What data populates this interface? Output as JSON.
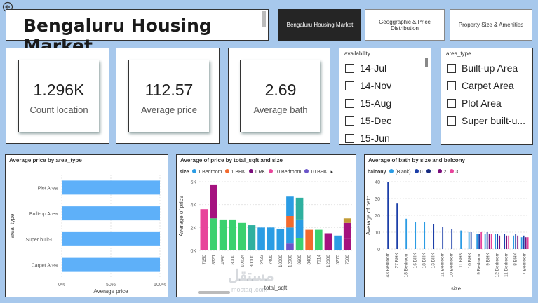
{
  "title": "Bengaluru Housing Market",
  "nav": [
    "Bengaluru Housing Market",
    "Geoggraphic & Price Distribution",
    "Property Size & Amenities"
  ],
  "kpis": [
    {
      "value": "1.296K",
      "label": "Count location"
    },
    {
      "value": "112.57",
      "label": "Average price"
    },
    {
      "value": "2.69",
      "label": "Average bath"
    }
  ],
  "availability": {
    "header": "availability",
    "items": [
      "14-Jul",
      "14-Nov",
      "15-Aug",
      "15-Dec",
      "15-Jun"
    ]
  },
  "area_type": {
    "header": "area_type",
    "items": [
      "Built-up Area",
      "Carpet Area",
      "Plot Area",
      "Super built-u..."
    ]
  },
  "watermark": {
    "arabic": "مستقل",
    "latin": "mostaql.com"
  },
  "colors": {
    "accent_bar": "#5eb0f9",
    "active_nav": "#252525",
    "background": "#a7c8ec"
  },
  "chart_data": [
    {
      "type": "bar",
      "orientation": "horizontal",
      "title": "Average price by area_type",
      "xlabel": "Average price",
      "ylabel": "area_type",
      "categories": [
        "Plot Area",
        "Built-up Area",
        "Super built-u...",
        "Carpet Area"
      ],
      "values": [
        100,
        100,
        100,
        100
      ],
      "xticks": [
        "0%",
        "50%",
        "100%"
      ],
      "color": "#5eb0f9"
    },
    {
      "type": "bar",
      "title": "Average of price by total_sqft and size",
      "xlabel": "total_sqft",
      "ylabel": "Average of price",
      "legend_title": "size",
      "legend": [
        {
          "name": "1 Bedroom",
          "color": "#2b9ce4"
        },
        {
          "name": "1 BHK",
          "color": "#f26a2e"
        },
        {
          "name": "1 RK",
          "color": "#7a0e7b"
        },
        {
          "name": "10 Bedroom",
          "color": "#e8449b"
        },
        {
          "name": "10 BHK",
          "color": "#6b55c9"
        }
      ],
      "yticks": [
        "6K",
        "4K",
        "2K",
        "0K"
      ],
      "ylim": [
        0,
        6000
      ],
      "categories": [
        "7150",
        "8321",
        "4350",
        "8000",
        "10624",
        "30000",
        "5422",
        "7400",
        "10000",
        "12000",
        "9600",
        "8400",
        "7514",
        "12000",
        "5270",
        "7500"
      ],
      "stacks": [
        [
          {
            "v": 3600,
            "c": "#e8449b"
          }
        ],
        [
          {
            "v": 2800,
            "c": "#3bd16f"
          },
          {
            "v": 2900,
            "c": "#a5127f"
          }
        ],
        [
          {
            "v": 2700,
            "c": "#3bd16f"
          }
        ],
        [
          {
            "v": 2700,
            "c": "#3bd16f"
          }
        ],
        [
          {
            "v": 2400,
            "c": "#3bd16f"
          }
        ],
        [
          {
            "v": 2200,
            "c": "#2fb09f"
          }
        ],
        [
          {
            "v": 2000,
            "c": "#2b9ce4"
          }
        ],
        [
          {
            "v": 2000,
            "c": "#2b9ce4"
          }
        ],
        [
          {
            "v": 1900,
            "c": "#2b9ce4"
          }
        ],
        [
          {
            "v": 600,
            "c": "#6b55c9"
          },
          {
            "v": 1400,
            "c": "#2b9ce4"
          },
          {
            "v": 1000,
            "c": "#f26a2e"
          },
          {
            "v": 1700,
            "c": "#2b9ce4"
          }
        ],
        [
          {
            "v": 1100,
            "c": "#3bd16f"
          },
          {
            "v": 1600,
            "c": "#2b9ce4"
          },
          {
            "v": 1900,
            "c": "#2fb09f"
          }
        ],
        [
          {
            "v": 1800,
            "c": "#f26a2e"
          }
        ],
        [
          {
            "v": 1800,
            "c": "#3bd16f"
          }
        ],
        [
          {
            "v": 1500,
            "c": "#a5127f"
          }
        ],
        [
          {
            "v": 1300,
            "c": "#2b9ce4"
          }
        ],
        [
          {
            "v": 1000,
            "c": "#a5127f"
          },
          {
            "v": 1400,
            "c": "#a5127f"
          },
          {
            "v": 400,
            "c": "#c29c36"
          }
        ]
      ]
    },
    {
      "type": "bar",
      "title": "Average of bath by size and balcony",
      "xlabel": "size",
      "ylabel": "Average of bath",
      "legend_title": "balcony",
      "legend": [
        {
          "name": "(Blank)",
          "color": "#2b9ce4"
        },
        {
          "name": "0",
          "color": "#1c3fa8"
        },
        {
          "name": "1",
          "color": "#152a80"
        },
        {
          "name": "2",
          "color": "#7a0e7b"
        },
        {
          "name": "3",
          "color": "#e8449b"
        }
      ],
      "yticks": [
        "40",
        "30",
        "20",
        "10",
        "0"
      ],
      "ylim": [
        0,
        40
      ],
      "categories": [
        "43 Bedroom",
        "27 BHK",
        "18 Bedroom",
        "16 BHK",
        "18 BHK",
        "13 BHK",
        "11 Bedroom",
        "10 Bedroom",
        "11 BHK",
        "10 BHK",
        "9 Bedroom",
        "9 BHK",
        "12 Bedroom",
        "11 Bedroom",
        "8 BHK",
        "7 Bedroom"
      ],
      "groups": [
        [
          {
            "v": 40,
            "c": "#1c3fa8"
          }
        ],
        [
          {
            "v": 27,
            "c": "#1c3fa8"
          }
        ],
        [
          {
            "v": 18,
            "c": "#2b9ce4"
          }
        ],
        [
          {
            "v": 16,
            "c": "#2b9ce4"
          }
        ],
        [
          {
            "v": 16,
            "c": "#2b9ce4"
          }
        ],
        [
          {
            "v": 15,
            "c": "#1c3fa8"
          }
        ],
        [
          {
            "v": 13,
            "c": "#1c3fa8"
          }
        ],
        [
          {
            "v": 12,
            "c": "#1c3fa8"
          }
        ],
        [
          {
            "v": 11,
            "c": "#2b9ce4"
          }
        ],
        [
          {
            "v": 10,
            "c": "#2b9ce4"
          },
          {
            "v": 10,
            "c": "#1c3fa8"
          }
        ],
        [
          {
            "v": 9,
            "c": "#2b9ce4"
          },
          {
            "v": 9,
            "c": "#1c3fa8"
          },
          {
            "v": 10,
            "c": "#e8449b"
          }
        ],
        [
          {
            "v": 9,
            "c": "#2b9ce4"
          },
          {
            "v": 10,
            "c": "#1c3fa8"
          },
          {
            "v": 9,
            "c": "#7a0e7b"
          },
          {
            "v": 9,
            "c": "#e8449b"
          }
        ],
        [
          {
            "v": 9,
            "c": "#2b9ce4"
          },
          {
            "v": 9,
            "c": "#1c3fa8"
          },
          {
            "v": 8,
            "c": "#7a0e7b"
          }
        ],
        [
          {
            "v": 9,
            "c": "#1c3fa8"
          },
          {
            "v": 8,
            "c": "#7a0e7b"
          },
          {
            "v": 8,
            "c": "#e8449b"
          }
        ],
        [
          {
            "v": 8,
            "c": "#2b9ce4"
          },
          {
            "v": 9,
            "c": "#1c3fa8"
          },
          {
            "v": 8,
            "c": "#7a0e7b"
          }
        ],
        [
          {
            "v": 7,
            "c": "#2b9ce4"
          },
          {
            "v": 8,
            "c": "#1c3fa8"
          },
          {
            "v": 7,
            "c": "#7a0e7b"
          },
          {
            "v": 7,
            "c": "#e8449b"
          }
        ]
      ]
    }
  ]
}
